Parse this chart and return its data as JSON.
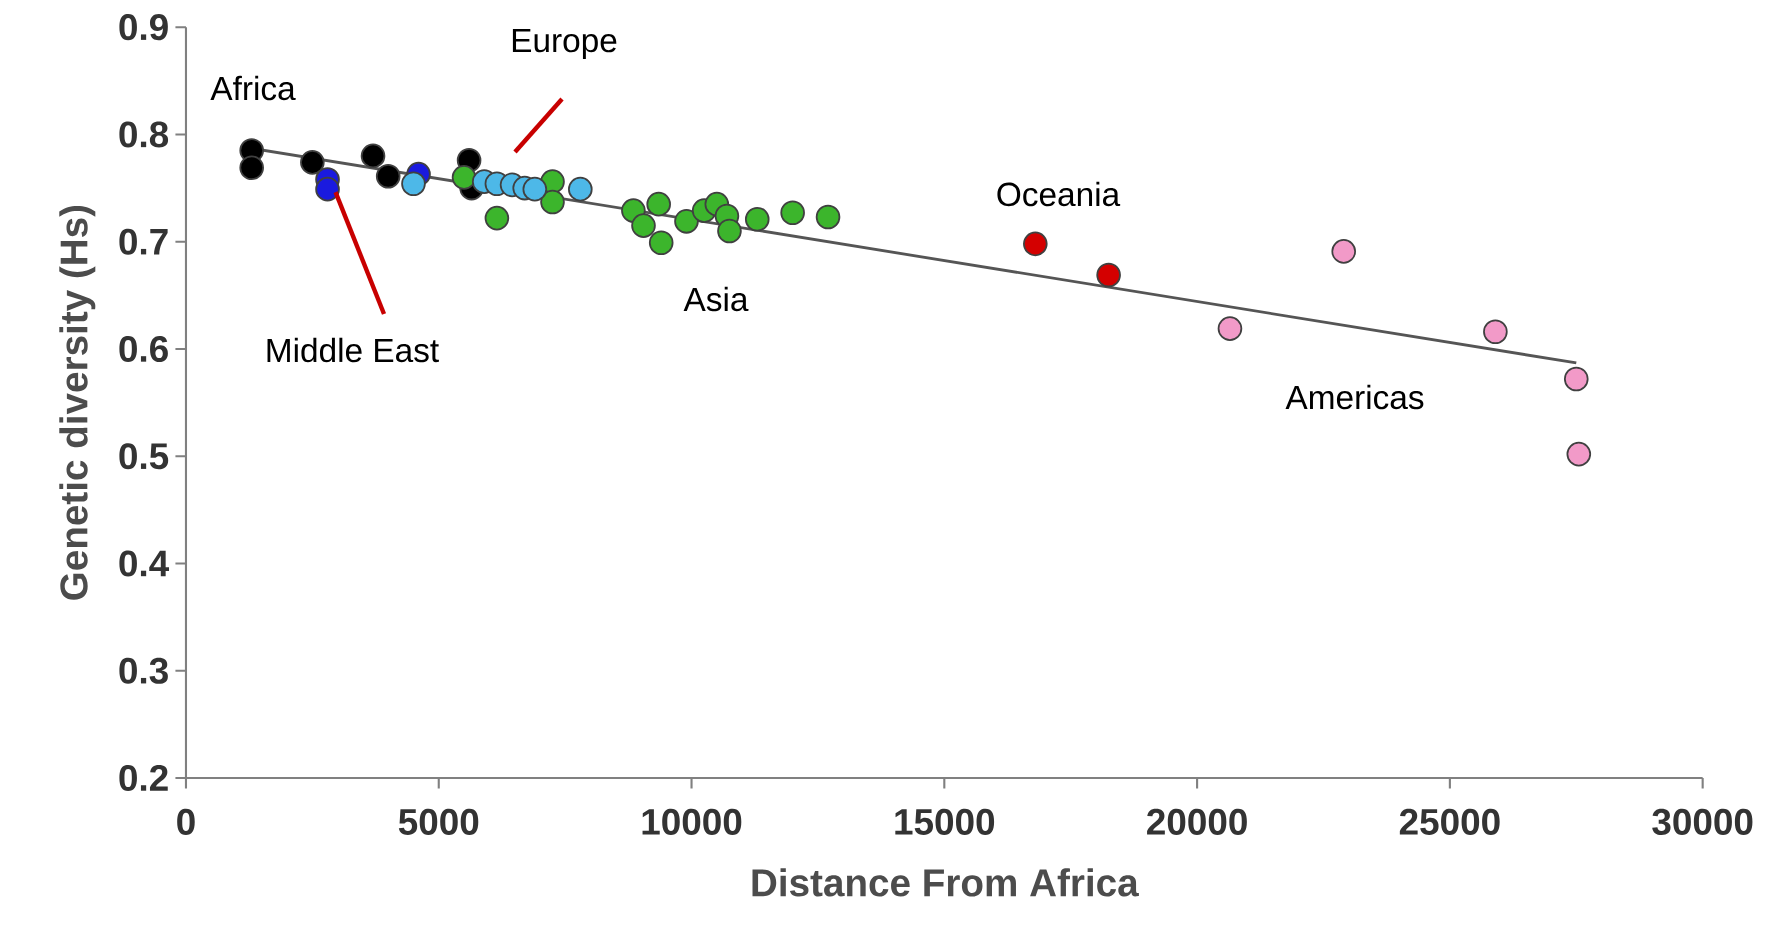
{
  "chart_data": {
    "type": "scatter",
    "xlabel": "Distance From Africa",
    "ylabel": "Genetic diversity (Hs)",
    "xlim": [
      0,
      30000
    ],
    "ylim": [
      0.2,
      0.9
    ],
    "xticks": [
      0,
      5000,
      10000,
      15000,
      20000,
      25000,
      30000
    ],
    "yticks": [
      0.2,
      0.3,
      0.4,
      0.5,
      0.6,
      0.7,
      0.8,
      0.9
    ],
    "grid": false,
    "marker": "circle",
    "series": [
      {
        "color": "#000000",
        "x": [
          1300,
          1300,
          2500,
          3700,
          4000,
          5600,
          5650
        ],
        "values": [
          0.785,
          0.769,
          0.774,
          0.78,
          0.761,
          0.776,
          0.75
        ]
      },
      {
        "color": "#1a1adf",
        "x": [
          2800,
          2800,
          4600
        ],
        "values": [
          0.758,
          0.749,
          0.763
        ]
      },
      {
        "color": "#3cb52c",
        "x": [
          5500,
          6150,
          7250,
          7250,
          8850,
          9350,
          9050,
          9400,
          9900,
          10250,
          10500,
          10700,
          10750,
          11300,
          12000,
          12700
        ],
        "values": [
          0.76,
          0.722,
          0.756,
          0.737,
          0.729,
          0.735,
          0.715,
          0.699,
          0.719,
          0.729,
          0.735,
          0.724,
          0.71,
          0.721,
          0.727,
          0.723
        ]
      },
      {
        "color": "#4db8e8",
        "x": [
          4500,
          5900,
          6150,
          6450,
          6700,
          6900,
          7800
        ],
        "values": [
          0.754,
          0.756,
          0.754,
          0.753,
          0.75,
          0.749,
          0.749
        ]
      },
      {
        "color": "#d40000",
        "x": [
          16800,
          18250
        ],
        "values": [
          0.698,
          0.669
        ]
      },
      {
        "color": "#f29ac8",
        "x": [
          20650,
          22900,
          25900,
          27500,
          27550
        ],
        "values": [
          0.619,
          0.691,
          0.616,
          0.572,
          0.502
        ]
      },
      {
        "type": "line",
        "marker": "none",
        "color": "#555555",
        "x": [
          1300,
          27500
        ],
        "values": [
          0.787,
          0.587
        ]
      }
    ],
    "annotations": [
      "Africa",
      "Europe",
      {
        "text": "Middle East",
        "x": 2800,
        "y": 0.749
      },
      "Asia",
      "Oceania",
      "Americas"
    ]
  }
}
